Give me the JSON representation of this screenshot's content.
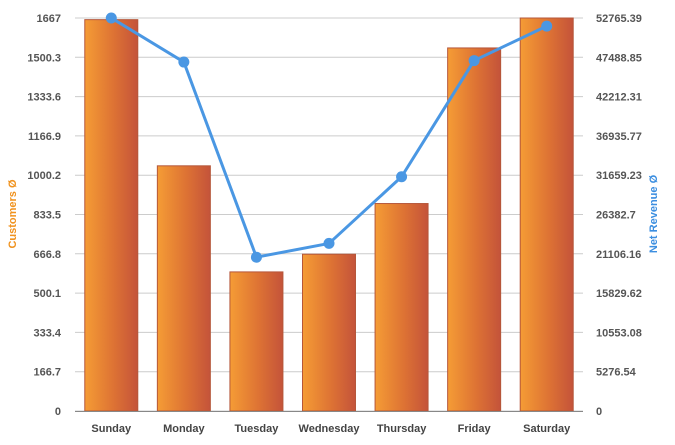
{
  "chart_data": {
    "type": "bar",
    "categories": [
      "Sunday",
      "Monday",
      "Tuesday",
      "Wednesday",
      "Thursday",
      "Friday",
      "Saturday"
    ],
    "series": [
      {
        "name": "Customers Ø",
        "type": "bar",
        "axis": "left",
        "values": [
          1660,
          1040,
          590,
          665,
          880,
          1540,
          1667
        ]
      },
      {
        "name": "Net Revenue Ø",
        "type": "line",
        "axis": "right",
        "values": [
          52765.39,
          46850,
          20650,
          22500,
          31450,
          47050,
          51680
        ]
      }
    ],
    "ylabel": "Customers Ø",
    "y2label": "Net Revenue Ø",
    "ylim": [
      0,
      1667
    ],
    "y2lim": [
      0,
      52765.39
    ],
    "yticks": [
      "0",
      "166.7",
      "333.4",
      "500.1",
      "666.8",
      "833.5",
      "1000.2",
      "1166.9",
      "1333.6",
      "1500.3",
      "1667"
    ],
    "y2ticks": [
      "0",
      "5276.54",
      "10553.08",
      "15829.62",
      "21106.16",
      "26382.7",
      "31659.23",
      "36935.77",
      "42212.31",
      "47488.85",
      "52765.39"
    ],
    "grid": true,
    "colors": {
      "bar_light": "#f49a34",
      "bar_dark": "#c4533a",
      "line": "#4a97e3",
      "grid": "#cccccc",
      "left_title": "#f0921e",
      "right_title": "#3b8ee0"
    }
  }
}
